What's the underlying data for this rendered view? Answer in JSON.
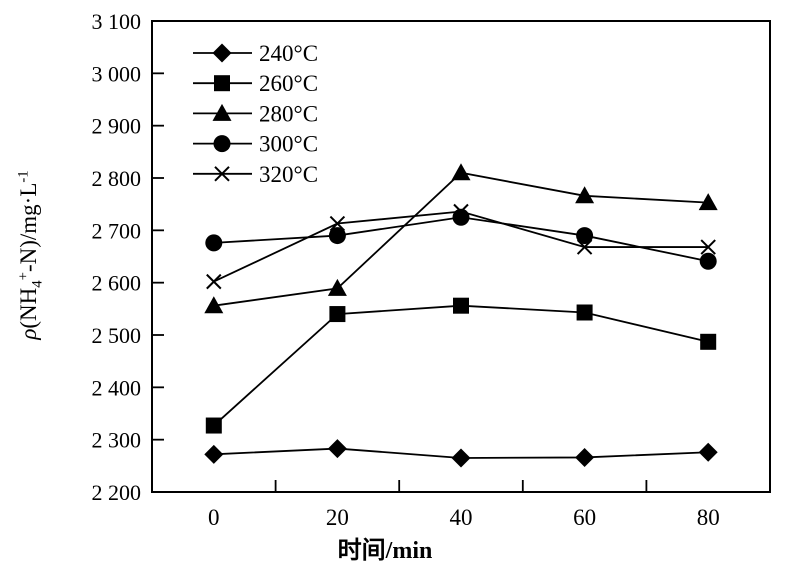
{
  "chart_data": {
    "type": "line",
    "title": "",
    "xlabel": "时间/min",
    "ylabel": "ρ(NH₄⁺-N)/mg·L⁻¹",
    "ylabel_segments": [
      {
        "t": "ρ",
        "s": "ital"
      },
      {
        "t": "(NH"
      },
      {
        "t": "4",
        "s": "sub"
      },
      {
        "t": "+",
        "s": "sup"
      },
      {
        "t": "-N)/mg·L"
      },
      {
        "t": "-1",
        "s": "sup"
      }
    ],
    "x": [
      0,
      20,
      40,
      60,
      80
    ],
    "series": [
      {
        "name": "240°C",
        "marker": "diamond",
        "values": [
          2272,
          2283,
          2265,
          2266,
          2276
        ]
      },
      {
        "name": "260°C",
        "marker": "square",
        "values": [
          2327,
          2540,
          2556,
          2543,
          2487
        ]
      },
      {
        "name": "280°C",
        "marker": "triangle",
        "values": [
          2556,
          2589,
          2810,
          2766,
          2753
        ]
      },
      {
        "name": "300°C",
        "marker": "circle",
        "values": [
          2676,
          2690,
          2725,
          2690,
          2641
        ]
      },
      {
        "name": "320°C",
        "marker": "cross",
        "values": [
          2602,
          2713,
          2736,
          2668,
          2668
        ]
      }
    ],
    "xlim": [
      -10,
      90
    ],
    "ylim": [
      2200,
      3100
    ],
    "x_tick_marks": [
      10,
      30,
      50,
      70
    ],
    "x_tick_labels": [
      {
        "v": 0,
        "label": "0"
      },
      {
        "v": 20,
        "label": "20"
      },
      {
        "v": 40,
        "label": "40"
      },
      {
        "v": 60,
        "label": "60"
      },
      {
        "v": 80,
        "label": "80"
      }
    ],
    "y_ticks": [
      {
        "v": 2200,
        "label": "2 200"
      },
      {
        "v": 2300,
        "label": "2 300"
      },
      {
        "v": 2400,
        "label": "2 400"
      },
      {
        "v": 2500,
        "label": "2 500"
      },
      {
        "v": 2600,
        "label": "2 600"
      },
      {
        "v": 2700,
        "label": "2 700"
      },
      {
        "v": 2800,
        "label": "2 800"
      },
      {
        "v": 2900,
        "label": "2 900"
      },
      {
        "v": 3000,
        "label": "3 000"
      },
      {
        "v": 3100,
        "label": "3 100"
      }
    ],
    "legend_position": "top-left",
    "grid": false,
    "colors": {
      "foreground": "#000000",
      "background": "#ffffff"
    }
  }
}
